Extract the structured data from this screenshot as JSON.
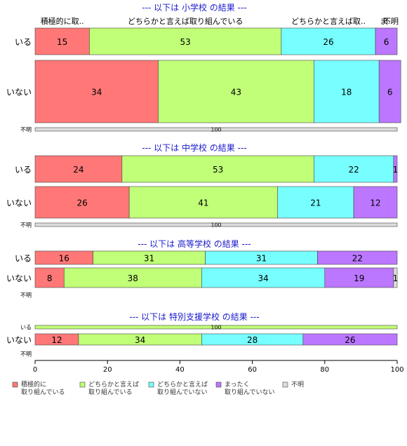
{
  "chart_data": {
    "type": "bar",
    "orientation": "horizontal-stacked-percent",
    "categories": [
      "積極的に取り組んでいる",
      "どちらかと言えば取り組んでいる",
      "どちらかと言えば取り組んでいない",
      "まったく取り組んでいない",
      "不明"
    ],
    "category_headers": [
      "積極的に取..",
      "どちらかと言えば取り組んでいる",
      "どちらかと言えば取..",
      "ま..",
      "不明"
    ],
    "colors": [
      "#ff7777",
      "#c0ff77",
      "#77ffff",
      "#bb77ff",
      "#dddddd"
    ],
    "xlim": [
      0,
      100
    ],
    "xticks": [
      0,
      20,
      40,
      60,
      80,
      100
    ],
    "groups": [
      {
        "title": "--- 以下は 小学校 の結果 ---",
        "rows": [
          {
            "label": "いる",
            "values": [
              15,
              53,
              26,
              6,
              0
            ]
          },
          {
            "label": "いない",
            "values": [
              34,
              43,
              18,
              6,
              0
            ]
          },
          {
            "label": "不明",
            "values": [
              0,
              0,
              0,
              0,
              100
            ]
          }
        ]
      },
      {
        "title": "--- 以下は 中学校 の結果 ---",
        "rows": [
          {
            "label": "いる",
            "values": [
              24,
              53,
              22,
              1,
              0
            ]
          },
          {
            "label": "いない",
            "values": [
              26,
              41,
              21,
              12,
              0
            ]
          },
          {
            "label": "不明",
            "values": [
              0,
              0,
              0,
              0,
              100
            ]
          }
        ]
      },
      {
        "title": "--- 以下は 高等学校 の結果 ---",
        "rows": [
          {
            "label": "いる",
            "values": [
              16,
              31,
              31,
              22,
              0
            ]
          },
          {
            "label": "いない",
            "values": [
              8,
              38,
              34,
              19,
              1
            ]
          },
          {
            "label": "不明",
            "values": [
              0,
              0,
              0,
              0,
              0
            ]
          }
        ]
      },
      {
        "title": "--- 以下は 特別支援学校 の結果 ---",
        "rows": [
          {
            "label": "いる",
            "values": [
              0,
              100,
              0,
              0,
              0
            ]
          },
          {
            "label": "いない",
            "values": [
              12,
              34,
              28,
              26,
              0
            ]
          },
          {
            "label": "不明",
            "values": [
              0,
              0,
              0,
              0,
              0
            ]
          }
        ]
      }
    ],
    "legend": [
      "積極的に\n取り組んでいる",
      "どちらかと言えば\n取り組んでいる",
      "どちらかと言えば\n取り組んでいない",
      "まったく\n取り組んでいない",
      "不明"
    ],
    "legend_position": "bottom"
  }
}
